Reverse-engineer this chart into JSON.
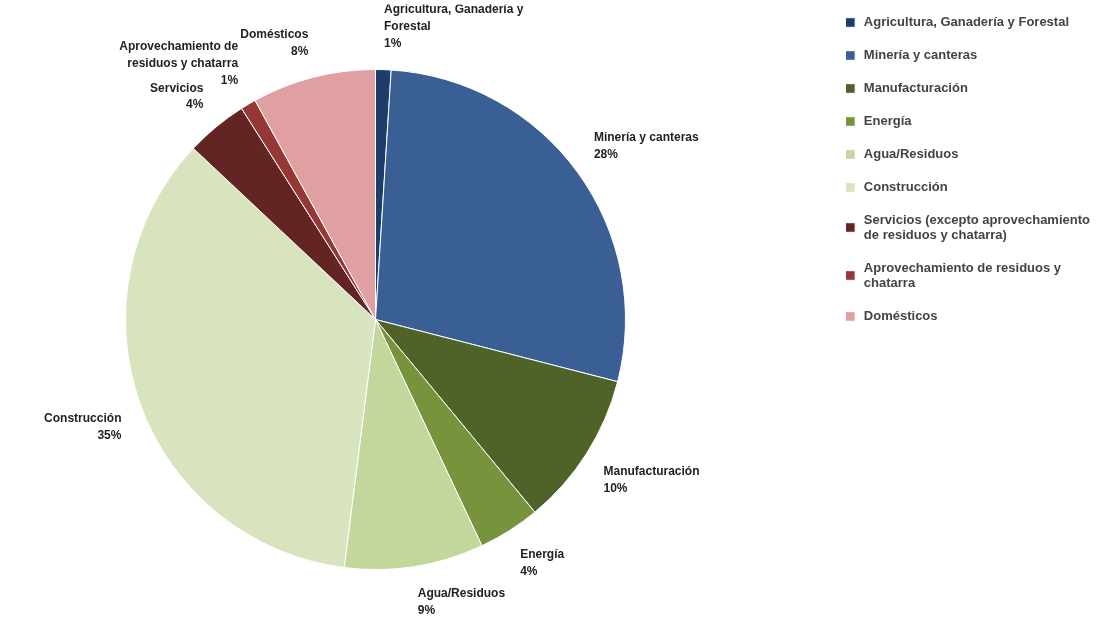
{
  "chart_data": {
    "type": "pie",
    "legend": "right",
    "categories": [
      "Agricultura, Ganadería y Forestal",
      "Minería y canteras",
      "Manufacturación",
      "Energía",
      "Agua/Residuos",
      "Construcción",
      "Servicios (excepto aprovechamiento de residuos y chatarra)",
      "Aprovechamiento de residuos y chatarra",
      "Domésticos"
    ],
    "values": [
      1,
      28,
      10,
      4,
      9,
      35,
      4,
      1,
      8
    ],
    "colors": [
      "#1f3d6b",
      "#3a5f94",
      "#4f6228",
      "#77933c",
      "#c3d69b",
      "#d7e4bd",
      "#632523",
      "#953735",
      "#e0a0a2"
    ],
    "value_labels": [
      "Agricultura, Ganadería y\nForestal\n1%",
      "Minería y canteras\n28%",
      "Manufacturación\n10%",
      "Energía\n4%",
      "Agua/Residuos\n9%",
      "Construcción\n35%",
      "Servicios\n4%",
      "Aprovechamiento de\nresiduos y chatarra\n1%",
      "Domésticos\n8%"
    ]
  }
}
